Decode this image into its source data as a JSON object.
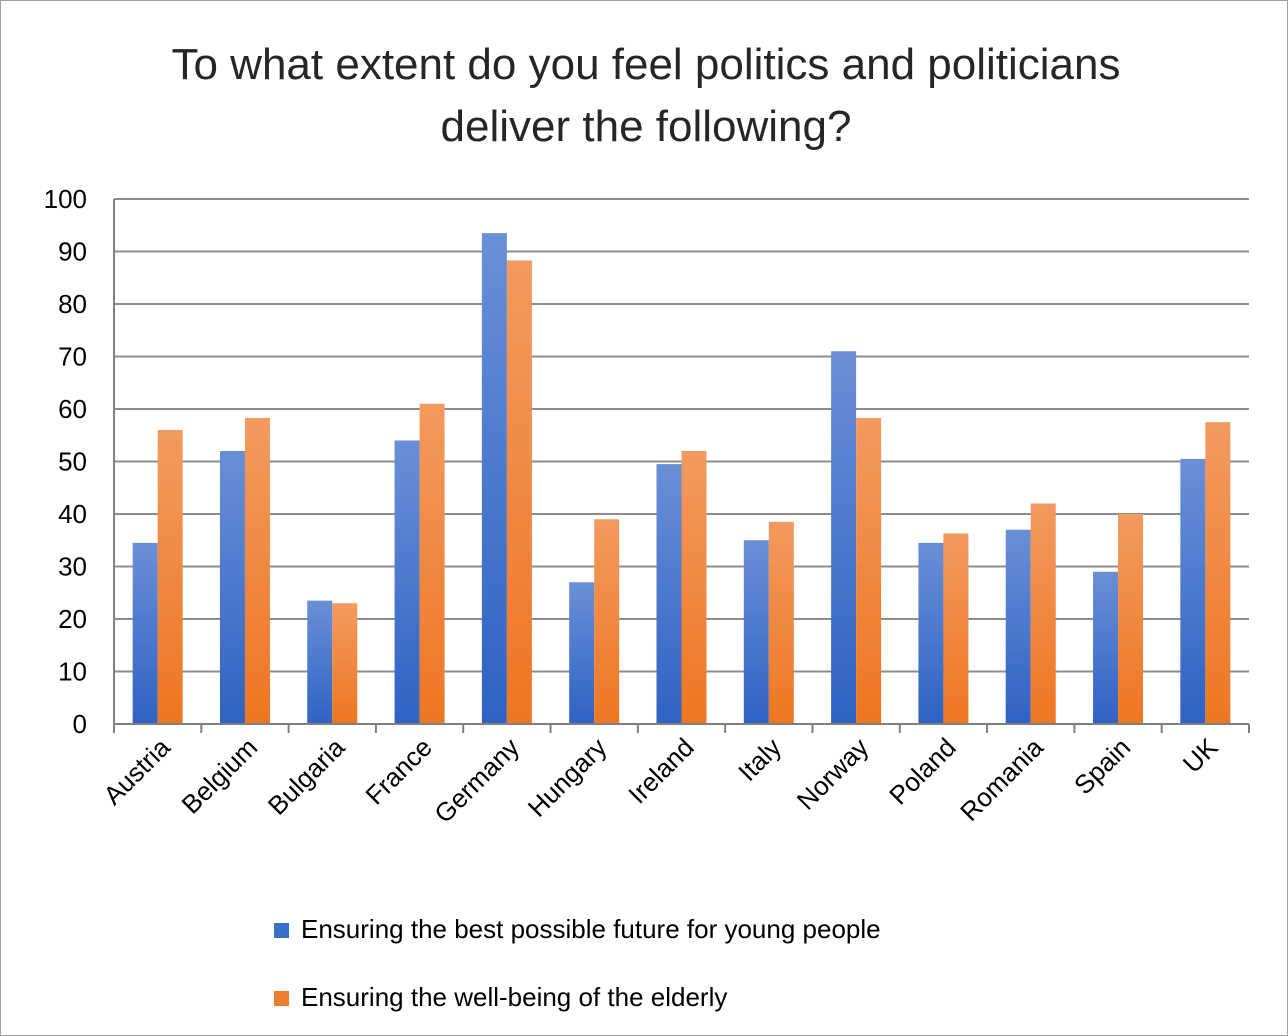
{
  "chart_data": {
    "type": "bar",
    "title_line1": "To what extent do you feel politics and politicians",
    "title_line2": "deliver the following?",
    "categories": [
      "Austria",
      "Belgium",
      "Bulgaria",
      "France",
      "Germany",
      "Hungary",
      "Ireland",
      "Italy",
      "Norway",
      "Poland",
      "Romania",
      "Spain",
      "UK"
    ],
    "series": [
      {
        "name": "Ensuring the best possible future for young people",
        "color": "#3b6fc9",
        "values": [
          34.5,
          52,
          23.5,
          54,
          93.5,
          27,
          49.5,
          35,
          71,
          34.5,
          37,
          29,
          50.5
        ]
      },
      {
        "name": "Ensuring the well-being of the elderly",
        "color": "#ef7d2e",
        "values": [
          56,
          58.3,
          23,
          61,
          88.3,
          39,
          52,
          38.5,
          58.3,
          36.3,
          42,
          40,
          57.5
        ]
      }
    ],
    "ylim": [
      0,
      100
    ],
    "yticks": [
      "0",
      "10",
      "20",
      "30",
      "40",
      "50",
      "60",
      "70",
      "80",
      "90",
      "100"
    ],
    "grid": true,
    "legend_position": "bottom"
  }
}
